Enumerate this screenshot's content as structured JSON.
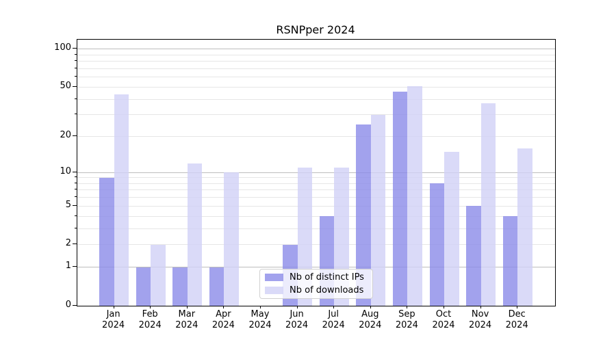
{
  "title": "RSNPper 2024",
  "chart_data": {
    "type": "bar",
    "title": "RSNPper 2024",
    "categories": [
      "Jan 2024",
      "Feb 2024",
      "Mar 2024",
      "Apr 2024",
      "May 2024",
      "Jun 2024",
      "Jul 2024",
      "Aug 2024",
      "Sep 2024",
      "Oct 2024",
      "Nov 2024",
      "Dec 2024"
    ],
    "series": [
      {
        "name": "Nb of distinct IPs",
        "color": "rgba(139,139,232,0.8)",
        "values": [
          9,
          1,
          1,
          1,
          0,
          2,
          4,
          25,
          46,
          8,
          5,
          4
        ]
      },
      {
        "name": "Nb of downloads",
        "color": "rgba(209,209,246,0.8)",
        "values": [
          44,
          2,
          12,
          10,
          0,
          11,
          11,
          30,
          51,
          15,
          37,
          16
        ]
      }
    ],
    "xlabel": "",
    "ylabel": "",
    "yscale": "log1p",
    "ylim": [
      0,
      117
    ],
    "y_tick_values": [
      0,
      1,
      2,
      5,
      10,
      20,
      50,
      100
    ],
    "y_major_gridlines": [
      1,
      10,
      100
    ],
    "y_minor_gridlines": [
      2,
      3,
      4,
      5,
      6,
      7,
      8,
      9,
      20,
      30,
      40,
      50,
      60,
      70,
      80,
      90
    ],
    "grid": true,
    "legend_position": "lower center"
  }
}
